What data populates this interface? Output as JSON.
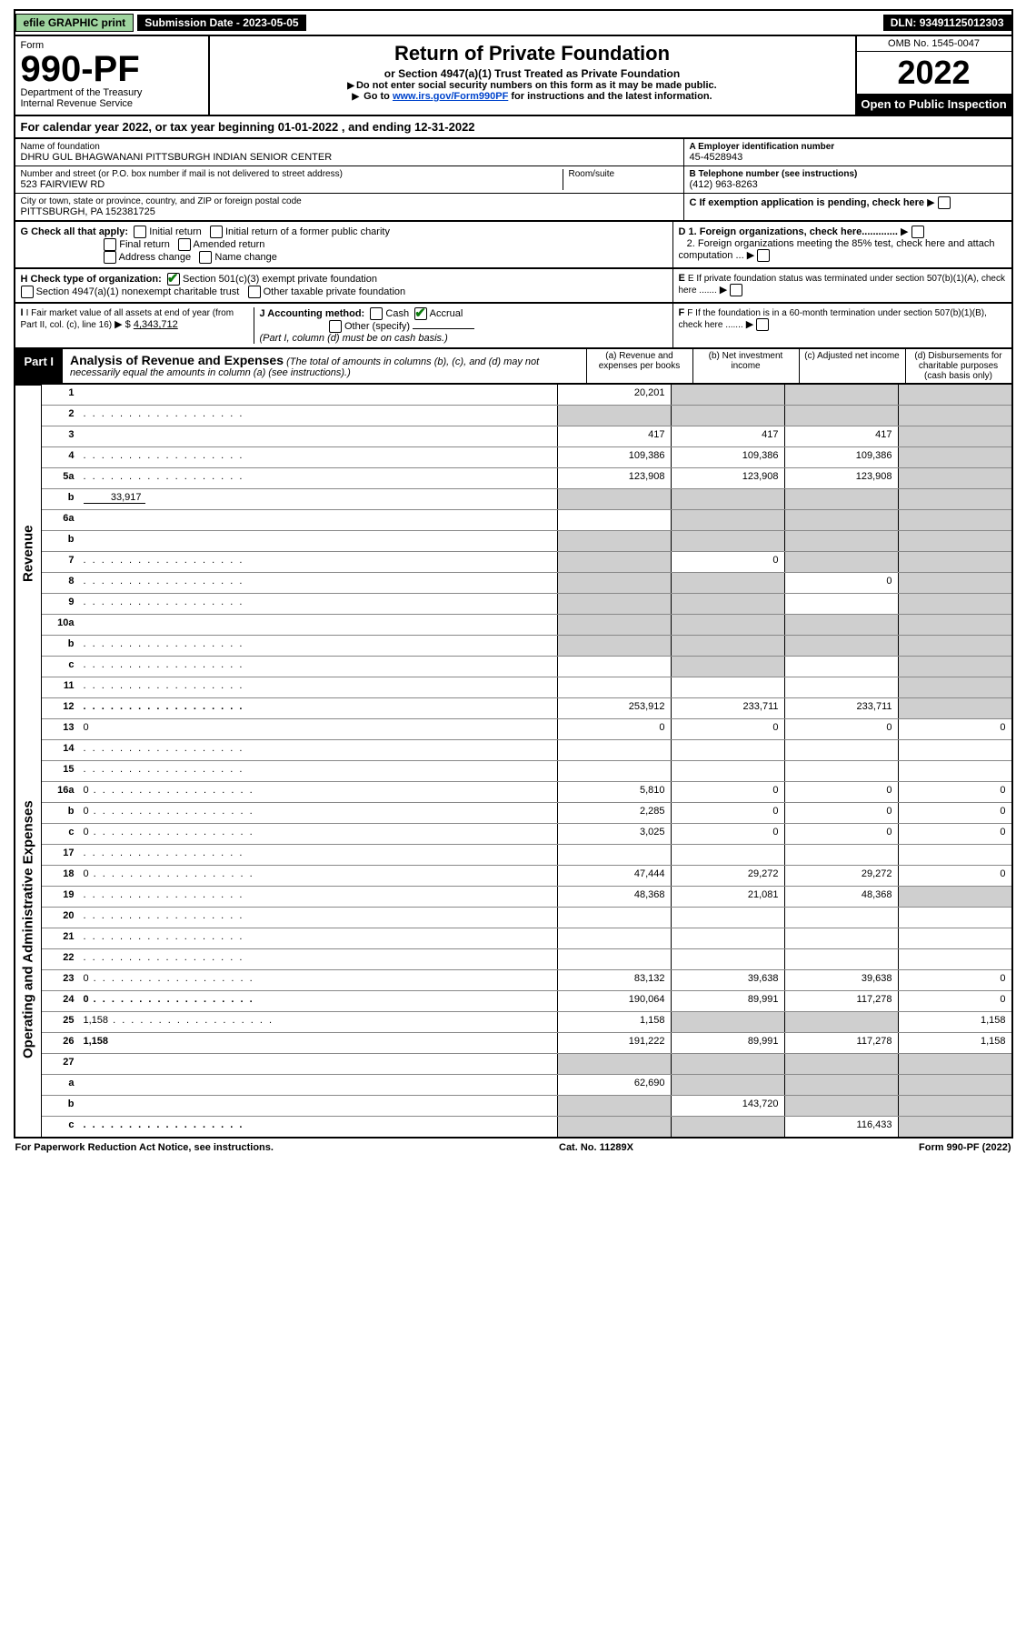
{
  "topbar": {
    "efile": "efile GRAPHIC print",
    "submission": "Submission Date - 2023-05-05",
    "dln": "DLN: 93491125012303"
  },
  "header": {
    "form_label": "Form",
    "form_no": "990-PF",
    "dept1": "Department of the Treasury",
    "dept2": "Internal Revenue Service",
    "title": "Return of Private Foundation",
    "subtitle": "or Section 4947(a)(1) Trust Treated as Private Foundation",
    "note1": "Do not enter social security numbers on this form as it may be made public.",
    "note2_pre": "Go to ",
    "note2_link": "www.irs.gov/Form990PF",
    "note2_post": " for instructions and the latest information.",
    "omb": "OMB No. 1545-0047",
    "year": "2022",
    "open": "Open to Public Inspection"
  },
  "cal": {
    "text_a": "For calendar year 2022, or tax year beginning ",
    "begin": "01-01-2022",
    "text_b": " , and ending ",
    "end": "12-31-2022"
  },
  "foundation": {
    "name_lbl": "Name of foundation",
    "name": "DHRU GUL BHAGWANANI PITTSBURGH INDIAN SENIOR CENTER",
    "addr_lbl": "Number and street (or P.O. box number if mail is not delivered to street address)",
    "addr": "523 FAIRVIEW RD",
    "room_lbl": "Room/suite",
    "room": "",
    "city_lbl": "City or town, state or province, country, and ZIP or foreign postal code",
    "city": "PITTSBURGH, PA  152381725",
    "ein_lbl": "A Employer identification number",
    "ein": "45-4528943",
    "tel_lbl": "B Telephone number (see instructions)",
    "tel": "(412) 963-8263",
    "c_lbl": "C If exemption application is pending, check here",
    "d1_lbl": "D 1. Foreign organizations, check here.............",
    "d2_lbl": "2. Foreign organizations meeting the 85% test, check here and attach computation ...",
    "e_lbl": "E If private foundation status was terminated under section 507(b)(1)(A), check here .......",
    "f_lbl": "F If the foundation is in a 60-month termination under section 507(b)(1)(B), check here .......",
    "g_lbl": "G Check all that apply:",
    "g_opts": [
      "Initial return",
      "Initial return of a former public charity",
      "Final return",
      "Amended return",
      "Address change",
      "Name change"
    ],
    "h_lbl": "H Check type of organization:",
    "h1": "Section 501(c)(3) exempt private foundation",
    "h2": "Section 4947(a)(1) nonexempt charitable trust",
    "h3": "Other taxable private foundation",
    "i_lbl": "I Fair market value of all assets at end of year (from Part II, col. (c), line 16)",
    "i_val": "4,343,712",
    "j_lbl": "J Accounting method:",
    "j_cash": "Cash",
    "j_accrual": "Accrual",
    "j_other": "Other (specify)",
    "j_note": "(Part I, column (d) must be on cash basis.)"
  },
  "part1": {
    "badge": "Part I",
    "title": "Analysis of Revenue and Expenses",
    "note": "(The total of amounts in columns (b), (c), and (d) may not necessarily equal the amounts in column (a) (see instructions).)",
    "cols": {
      "a": "(a) Revenue and expenses per books",
      "b": "(b) Net investment income",
      "c": "(c) Adjusted net income",
      "d": "(d) Disbursements for charitable purposes (cash basis only)"
    }
  },
  "sides": {
    "revenue": "Revenue",
    "expenses": "Operating and Administrative Expenses"
  },
  "rows": [
    {
      "n": "1",
      "d": "",
      "a": "20,201",
      "b": "",
      "c": "",
      "shade_b": true,
      "shade_c": true,
      "shade_d": true
    },
    {
      "n": "2",
      "d": "",
      "a": "",
      "b": "",
      "c": "",
      "shade_a": true,
      "shade_b": true,
      "shade_c": true,
      "shade_d": true,
      "dots": true
    },
    {
      "n": "3",
      "d": "",
      "a": "417",
      "b": "417",
      "c": "417",
      "shade_d": true
    },
    {
      "n": "4",
      "d": "",
      "a": "109,386",
      "b": "109,386",
      "c": "109,386",
      "shade_d": true,
      "dots": true
    },
    {
      "n": "5a",
      "d": "",
      "a": "123,908",
      "b": "123,908",
      "c": "123,908",
      "shade_d": true,
      "dots": true
    },
    {
      "n": "b",
      "d": "",
      "inline": "33,917",
      "a": "",
      "b": "",
      "c": "",
      "shade_a": true,
      "shade_b": true,
      "shade_c": true,
      "shade_d": true
    },
    {
      "n": "6a",
      "d": "",
      "a": "",
      "b": "",
      "c": "",
      "shade_b": true,
      "shade_c": true,
      "shade_d": true
    },
    {
      "n": "b",
      "d": "",
      "a": "",
      "b": "",
      "c": "",
      "shade_a": true,
      "shade_b": true,
      "shade_c": true,
      "shade_d": true
    },
    {
      "n": "7",
      "d": "",
      "a": "",
      "b": "0",
      "c": "",
      "shade_a": true,
      "shade_c": true,
      "shade_d": true,
      "dots": true
    },
    {
      "n": "8",
      "d": "",
      "a": "",
      "b": "",
      "c": "0",
      "shade_a": true,
      "shade_b": true,
      "shade_d": true,
      "dots": true
    },
    {
      "n": "9",
      "d": "",
      "a": "",
      "b": "",
      "c": "",
      "shade_a": true,
      "shade_b": true,
      "shade_d": true,
      "dots": true
    },
    {
      "n": "10a",
      "d": "",
      "a": "",
      "b": "",
      "c": "",
      "shade_a": true,
      "shade_b": true,
      "shade_c": true,
      "shade_d": true
    },
    {
      "n": "b",
      "d": "",
      "a": "",
      "b": "",
      "c": "",
      "shade_a": true,
      "shade_b": true,
      "shade_c": true,
      "shade_d": true,
      "dots": true
    },
    {
      "n": "c",
      "d": "",
      "a": "",
      "b": "",
      "c": "",
      "shade_b": true,
      "shade_d": true,
      "dots": true
    },
    {
      "n": "11",
      "d": "",
      "a": "",
      "b": "",
      "c": "",
      "shade_d": true,
      "dots": true
    },
    {
      "n": "12",
      "d": "",
      "bold": true,
      "a": "253,912",
      "b": "233,711",
      "c": "233,711",
      "shade_d": true,
      "dots": true
    },
    {
      "n": "13",
      "d": "0",
      "a": "0",
      "b": "0",
      "c": "0"
    },
    {
      "n": "14",
      "d": "",
      "a": "",
      "b": "",
      "c": "",
      "dots": true
    },
    {
      "n": "15",
      "d": "",
      "a": "",
      "b": "",
      "c": "",
      "dots": true
    },
    {
      "n": "16a",
      "d": "0",
      "a": "5,810",
      "b": "0",
      "c": "0",
      "dots": true
    },
    {
      "n": "b",
      "d": "0",
      "a": "2,285",
      "b": "0",
      "c": "0",
      "dots": true
    },
    {
      "n": "c",
      "d": "0",
      "a": "3,025",
      "b": "0",
      "c": "0",
      "dots": true
    },
    {
      "n": "17",
      "d": "",
      "a": "",
      "b": "",
      "c": "",
      "dots": true
    },
    {
      "n": "18",
      "d": "0",
      "a": "47,444",
      "b": "29,272",
      "c": "29,272",
      "dots": true
    },
    {
      "n": "19",
      "d": "",
      "a": "48,368",
      "b": "21,081",
      "c": "48,368",
      "shade_d": true,
      "dots": true
    },
    {
      "n": "20",
      "d": "",
      "a": "",
      "b": "",
      "c": "",
      "dots": true
    },
    {
      "n": "21",
      "d": "",
      "a": "",
      "b": "",
      "c": "",
      "dots": true
    },
    {
      "n": "22",
      "d": "",
      "a": "",
      "b": "",
      "c": "",
      "dots": true
    },
    {
      "n": "23",
      "d": "0",
      "a": "83,132",
      "b": "39,638",
      "c": "39,638",
      "dots": true
    },
    {
      "n": "24",
      "d": "0",
      "bold": true,
      "a": "190,064",
      "b": "89,991",
      "c": "117,278",
      "dots": true
    },
    {
      "n": "25",
      "d": "1,158",
      "a": "1,158",
      "b": "",
      "c": "",
      "shade_b": true,
      "shade_c": true,
      "dots": true
    },
    {
      "n": "26",
      "d": "1,158",
      "bold": true,
      "a": "191,222",
      "b": "89,991",
      "c": "117,278"
    },
    {
      "n": "27",
      "d": "",
      "a": "",
      "b": "",
      "c": "",
      "shade_a": true,
      "shade_b": true,
      "shade_c": true,
      "shade_d": true
    },
    {
      "n": "a",
      "d": "",
      "bold": true,
      "a": "62,690",
      "b": "",
      "c": "",
      "shade_b": true,
      "shade_c": true,
      "shade_d": true
    },
    {
      "n": "b",
      "d": "",
      "bold": true,
      "a": "",
      "b": "143,720",
      "c": "",
      "shade_a": true,
      "shade_c": true,
      "shade_d": true
    },
    {
      "n": "c",
      "d": "",
      "bold": true,
      "a": "",
      "b": "",
      "c": "116,433",
      "shade_a": true,
      "shade_b": true,
      "shade_d": true,
      "dots": true
    }
  ],
  "footer": {
    "left": "For Paperwork Reduction Act Notice, see instructions.",
    "mid": "Cat. No. 11289X",
    "right": "Form 990-PF (2022)"
  },
  "colors": {
    "green_btn": "#9fd49f",
    "check_green": "#0b7a0b",
    "link": "#0044cc",
    "shade": "#cfcfcf"
  }
}
